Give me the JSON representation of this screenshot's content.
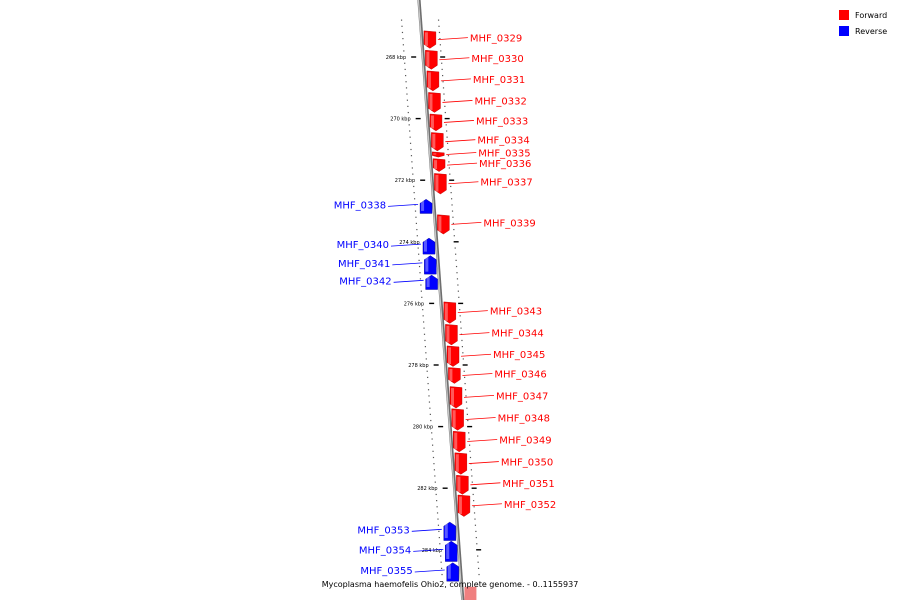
{
  "genome": {
    "caption": "Mycoplasma haemofelis Ohio2, complete genome. - 0..1155937"
  },
  "legend": {
    "items": [
      {
        "label": "Forward",
        "color": "#ff0000"
      },
      {
        "label": "Reverse",
        "color": "#0000ff"
      }
    ]
  },
  "colors": {
    "forward": "#ff0000",
    "reverse": "#0000ff",
    "backbone": "#999999"
  },
  "ticks": [
    {
      "label": "268 kbp",
      "kbp": 268
    },
    {
      "label": "270 kbp",
      "kbp": 270
    },
    {
      "label": "272 kbp",
      "kbp": 272
    },
    {
      "label": "274 kbp",
      "kbp": 274
    },
    {
      "label": "276 kbp",
      "kbp": 276
    },
    {
      "label": "278 kbp",
      "kbp": 278
    },
    {
      "label": "280 kbp",
      "kbp": 280
    },
    {
      "label": "282 kbp",
      "kbp": 282
    },
    {
      "label": "284 kbp",
      "kbp": 284
    }
  ],
  "genes": [
    {
      "name": "MHF_0329",
      "strand": "forward",
      "start": 267.15,
      "end": 267.72
    },
    {
      "name": "MHF_0330",
      "strand": "forward",
      "start": 267.78,
      "end": 268.4
    },
    {
      "name": "MHF_0331",
      "strand": "forward",
      "start": 268.45,
      "end": 269.1
    },
    {
      "name": "MHF_0332",
      "strand": "forward",
      "start": 269.15,
      "end": 269.8
    },
    {
      "name": "MHF_0333",
      "strand": "forward",
      "start": 269.85,
      "end": 270.4
    },
    {
      "name": "MHF_0334",
      "strand": "forward",
      "start": 270.45,
      "end": 271.05
    },
    {
      "name": "MHF_0335",
      "strand": "forward",
      "start": 271.08,
      "end": 271.25
    },
    {
      "name": "MHF_0336",
      "strand": "forward",
      "start": 271.3,
      "end": 271.72
    },
    {
      "name": "MHF_0337",
      "strand": "forward",
      "start": 271.78,
      "end": 272.45
    },
    {
      "name": "MHF_0338",
      "strand": "reverse",
      "start": 272.62,
      "end": 273.08
    },
    {
      "name": "MHF_0339",
      "strand": "forward",
      "start": 273.12,
      "end": 273.75
    },
    {
      "name": "MHF_0340",
      "strand": "reverse",
      "start": 273.88,
      "end": 274.4
    },
    {
      "name": "MHF_0341",
      "strand": "reverse",
      "start": 274.45,
      "end": 275.05
    },
    {
      "name": "MHF_0342",
      "strand": "reverse",
      "start": 275.08,
      "end": 275.55
    },
    {
      "name": "MHF_0343",
      "strand": "forward",
      "start": 275.95,
      "end": 276.65
    },
    {
      "name": "MHF_0344",
      "strand": "forward",
      "start": 276.68,
      "end": 277.35
    },
    {
      "name": "MHF_0345",
      "strand": "forward",
      "start": 277.38,
      "end": 278.05
    },
    {
      "name": "MHF_0346",
      "strand": "forward",
      "start": 278.08,
      "end": 278.6
    },
    {
      "name": "MHF_0347",
      "strand": "forward",
      "start": 278.7,
      "end": 279.4
    },
    {
      "name": "MHF_0348",
      "strand": "forward",
      "start": 279.42,
      "end": 280.12
    },
    {
      "name": "MHF_0349",
      "strand": "forward",
      "start": 280.15,
      "end": 280.82
    },
    {
      "name": "MHF_0350",
      "strand": "forward",
      "start": 280.85,
      "end": 281.55
    },
    {
      "name": "MHF_0351",
      "strand": "forward",
      "start": 281.58,
      "end": 282.2
    },
    {
      "name": "MHF_0352",
      "strand": "forward",
      "start": 282.22,
      "end": 282.92
    },
    {
      "name": "MHF_0353",
      "strand": "reverse",
      "start": 283.1,
      "end": 283.7
    },
    {
      "name": "MHF_0354",
      "strand": "reverse",
      "start": 283.72,
      "end": 284.38
    },
    {
      "name": "MHF_0355",
      "strand": "reverse",
      "start": 284.42,
      "end": 285.02
    }
  ]
}
